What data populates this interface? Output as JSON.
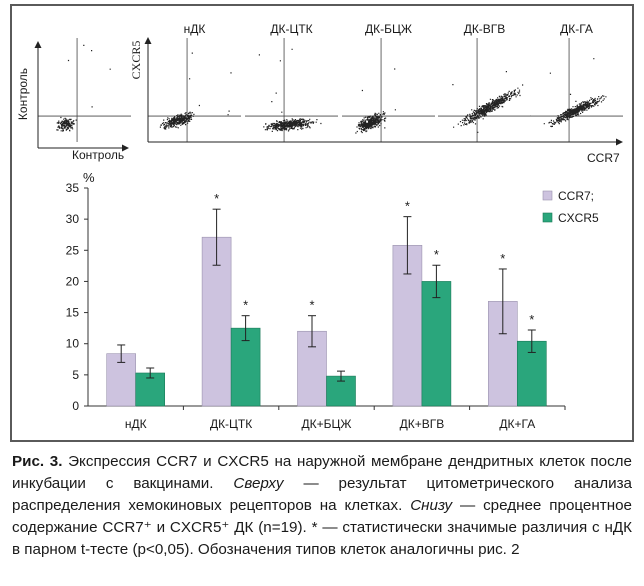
{
  "flow_panels": {
    "titles": [
      "нДК",
      "ДК-ЦТК",
      "ДК-БЦЖ",
      "ДК-ВГВ",
      "ДК-ГА"
    ],
    "control_y_label": "Контроль",
    "control_x_label": "Контроль",
    "cxcr5_y_label": "CXCR5",
    "ccr7_x_label": "CCR7"
  },
  "colors": {
    "ccr7": "#cdc3df",
    "cxcr5": "#2aa67c",
    "axis": "#333333"
  },
  "chart_data": {
    "type": "bar",
    "ylabel": "%",
    "ylim": [
      0,
      35
    ],
    "yticks": [
      "0",
      "5",
      "10",
      "15",
      "20",
      "25",
      "30",
      "35"
    ],
    "categories": [
      "нДК",
      "ДК-ЦТК",
      "ДК+БЦЖ",
      "ДК+ВГВ",
      "ДК+ГА"
    ],
    "series": [
      {
        "name": "CCR7;",
        "values": [
          8.4,
          27.1,
          12.0,
          25.8,
          16.8
        ],
        "errors": [
          1.4,
          4.5,
          2.5,
          4.6,
          5.2
        ],
        "significant": [
          false,
          true,
          true,
          true,
          true
        ]
      },
      {
        "name": "CXCR5",
        "values": [
          5.3,
          12.5,
          4.8,
          20.0,
          10.4
        ],
        "errors": [
          0.8,
          2.0,
          0.8,
          2.6,
          1.8
        ],
        "significant": [
          false,
          true,
          false,
          true,
          true
        ]
      }
    ],
    "significance_mark": "*",
    "legend_position": "top-right"
  },
  "caption": {
    "label": "Рис. 3.",
    "p1": " Экспрессия CCR7 и CXCR5 на наружной мембране дендритных клеток после инкубации с вакцинами. ",
    "top_word": "Сверху",
    "p2": " — результат цитометрического анализа распределения хемокиновых рецепторов на клетках. ",
    "bottom_word": "Снизу",
    "p3": " — среднее процентное содержание CCR7⁺ и CXCR5⁺ ДК (n=19). * — статистически значимые различия с нДК в парном t-тесте (p<0,05). Обозначения типов клеток аналогичны рис. 2"
  }
}
